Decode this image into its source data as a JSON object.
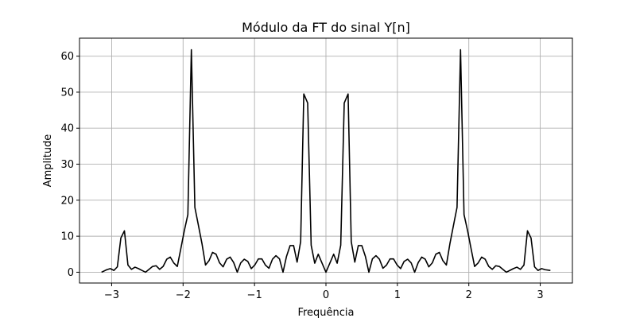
{
  "chart_data": {
    "type": "line",
    "title": "Módulo da FT do sinal Y[n]",
    "xlabel": "Frequência",
    "ylabel": "Amplitude",
    "xlim": [
      -3.45,
      3.45
    ],
    "ylim": [
      -3,
      65
    ],
    "xticks": [
      -3,
      -2,
      -1,
      0,
      1,
      2,
      3
    ],
    "xtick_labels": [
      "−3",
      "−2",
      "−1",
      "0",
      "1",
      "2",
      "3"
    ],
    "yticks": [
      0,
      10,
      20,
      30,
      40,
      50,
      60
    ],
    "ytick_labels": [
      "0",
      "10",
      "20",
      "30",
      "40",
      "50",
      "60"
    ],
    "grid": true,
    "line_color": "#000000",
    "grid_color": "#b0b0b0",
    "series": [
      {
        "x": [
          -3.142,
          -3.068,
          -3.019,
          -2.969,
          -2.92,
          -2.871,
          -2.821,
          -2.772,
          -2.723,
          -2.673,
          -2.624,
          -2.575,
          -2.525,
          -2.476,
          -2.427,
          -2.377,
          -2.328,
          -2.279,
          -2.229,
          -2.18,
          -2.131,
          -2.081,
          -2.032,
          -1.983,
          -1.933,
          -1.884,
          -1.835,
          -1.795,
          -1.736,
          -1.686,
          -1.637,
          -1.588,
          -1.538,
          -1.489,
          -1.44,
          -1.39,
          -1.341,
          -1.292,
          -1.242,
          -1.193,
          -1.144,
          -1.094,
          -1.045,
          -0.996,
          -0.946,
          -0.897,
          -0.848,
          -0.798,
          -0.749,
          -0.7,
          -0.65,
          -0.601,
          -0.552,
          -0.502,
          -0.453,
          -0.404,
          -0.354,
          -0.31,
          -0.256,
          -0.207,
          -0.157,
          -0.108,
          0.0,
          0.108,
          0.157,
          0.207,
          0.256,
          0.31,
          0.354,
          0.404,
          0.453,
          0.502,
          0.552,
          0.601,
          0.65,
          0.7,
          0.749,
          0.798,
          0.848,
          0.897,
          0.946,
          0.996,
          1.045,
          1.094,
          1.144,
          1.193,
          1.242,
          1.292,
          1.341,
          1.39,
          1.44,
          1.489,
          1.538,
          1.588,
          1.637,
          1.686,
          1.736,
          1.795,
          1.835,
          1.884,
          1.933,
          1.983,
          2.032,
          2.081,
          2.131,
          2.18,
          2.229,
          2.279,
          2.328,
          2.377,
          2.427,
          2.476,
          2.525,
          2.575,
          2.624,
          2.673,
          2.723,
          2.772,
          2.821,
          2.871,
          2.92,
          2.969,
          3.019,
          3.068,
          3.142
        ],
        "values": [
          0.0,
          0.7,
          1.0,
          0.5,
          1.5,
          9.5,
          11.5,
          2.0,
          0.8,
          1.4,
          1.0,
          0.5,
          0.0,
          0.8,
          1.6,
          1.8,
          0.8,
          1.6,
          3.6,
          4.2,
          2.6,
          1.6,
          6.5,
          11.5,
          16.0,
          61.8,
          18.0,
          14.0,
          8.0,
          2.0,
          3.2,
          5.5,
          5.0,
          2.6,
          1.5,
          3.6,
          4.2,
          2.7,
          0.0,
          2.6,
          3.6,
          3.0,
          1.0,
          2.0,
          3.7,
          3.7,
          2.0,
          1.1,
          3.6,
          4.6,
          3.7,
          0.0,
          4.4,
          7.4,
          7.4,
          2.8,
          8.5,
          49.5,
          47.0,
          7.5,
          2.5,
          5.0,
          0.0,
          5.0,
          2.5,
          7.5,
          47.0,
          49.5,
          8.5,
          2.8,
          7.4,
          7.4,
          4.4,
          0.0,
          3.7,
          4.6,
          3.6,
          1.1,
          2.0,
          3.7,
          3.7,
          2.0,
          1.0,
          3.0,
          3.6,
          2.6,
          0.0,
          2.7,
          4.2,
          3.6,
          1.5,
          2.6,
          5.0,
          5.5,
          3.2,
          2.0,
          8.0,
          14.0,
          18.0,
          61.8,
          16.0,
          11.5,
          6.5,
          1.6,
          2.6,
          4.2,
          3.6,
          1.6,
          0.8,
          1.8,
          1.6,
          0.8,
          0.0,
          0.5,
          1.0,
          1.4,
          0.8,
          2.0,
          11.5,
          9.5,
          1.5,
          0.5,
          1.0,
          0.7,
          0.5
        ]
      }
    ]
  }
}
